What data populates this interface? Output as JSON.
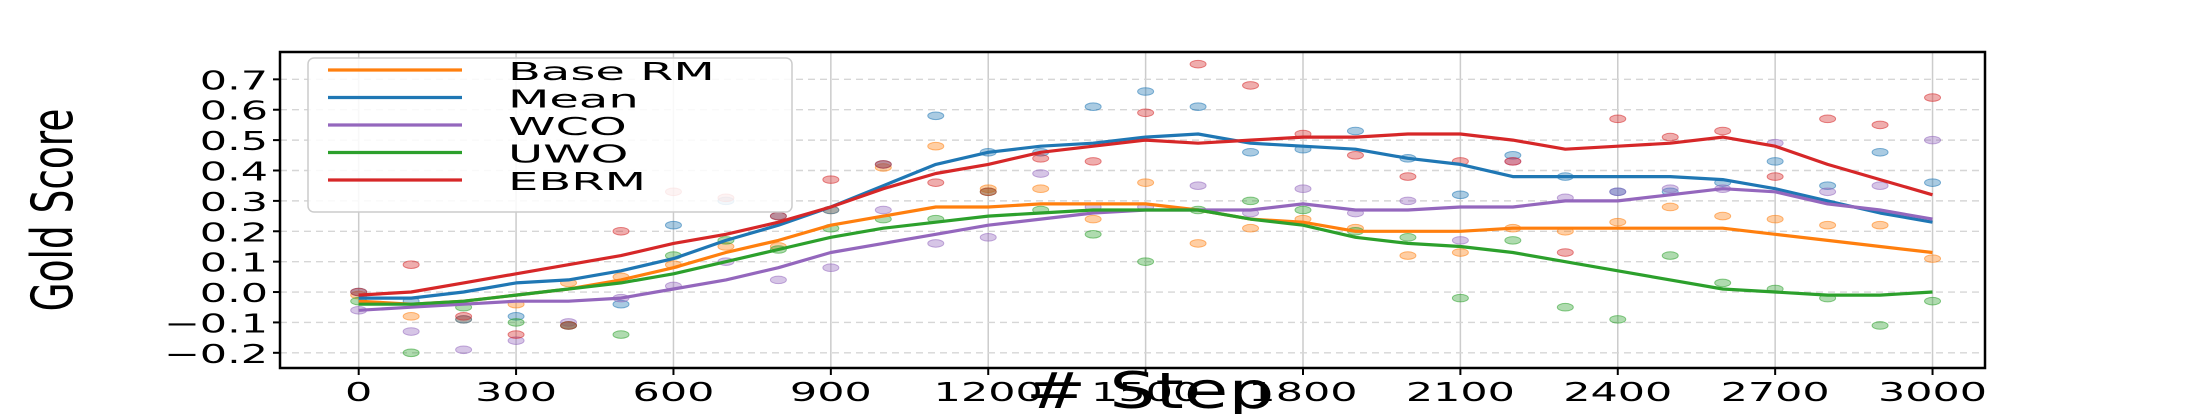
{
  "chart_data": {
    "type": "line",
    "xlabel": "# Step",
    "ylabel": "Gold Score",
    "xlim": [
      -150,
      3100
    ],
    "ylim": [
      -0.25,
      0.79
    ],
    "xticks": [
      0,
      300,
      600,
      900,
      1200,
      1500,
      1800,
      2100,
      2400,
      2700,
      3000
    ],
    "yticks": [
      -0.2,
      -0.1,
      0.0,
      0.1,
      0.2,
      0.3,
      0.4,
      0.5,
      0.6,
      0.7
    ],
    "ytick_labels": [
      "−0.2",
      "−0.1",
      "0.0",
      "0.1",
      "0.2",
      "0.3",
      "0.4",
      "0.5",
      "0.6",
      "0.7"
    ],
    "grid": true,
    "legend_position": "top-left",
    "series": [
      {
        "name": "Base RM",
        "color": "#ff7f0e",
        "x": [
          0,
          100,
          200,
          300,
          400,
          500,
          600,
          700,
          800,
          900,
          1000,
          1100,
          1200,
          1300,
          1400,
          1500,
          1600,
          1700,
          1800,
          1900,
          2000,
          2100,
          2200,
          2300,
          2400,
          2500,
          2600,
          2700,
          2800,
          2900,
          3000
        ],
        "y": [
          -0.03,
          -0.04,
          -0.03,
          -0.01,
          0.01,
          0.04,
          0.08,
          0.13,
          0.17,
          0.22,
          0.25,
          0.28,
          0.28,
          0.29,
          0.29,
          0.29,
          0.27,
          0.24,
          0.23,
          0.2,
          0.2,
          0.2,
          0.21,
          0.21,
          0.21,
          0.21,
          0.21,
          0.19,
          0.17,
          0.15,
          0.13
        ],
        "scatter_x": [
          0,
          100,
          200,
          300,
          400,
          500,
          600,
          700,
          800,
          900,
          1000,
          1100,
          1200,
          1300,
          1400,
          1500,
          1600,
          1700,
          1800,
          1900,
          2000,
          2100,
          2200,
          2300,
          2400,
          2500,
          2600,
          2700,
          2800,
          2900,
          3000
        ],
        "scatter_y": [
          -0.01,
          -0.08,
          -0.09,
          -0.04,
          0.03,
          0.05,
          0.09,
          0.15,
          0.15,
          0.27,
          0.41,
          0.48,
          0.34,
          0.34,
          0.24,
          0.36,
          0.16,
          0.21,
          0.24,
          0.21,
          0.12,
          0.13,
          0.21,
          0.2,
          0.23,
          0.28,
          0.25,
          0.24,
          0.22,
          0.22,
          0.11
        ]
      },
      {
        "name": "Mean",
        "color": "#1f77b4",
        "x": [
          0,
          100,
          200,
          300,
          400,
          500,
          600,
          700,
          800,
          900,
          1000,
          1100,
          1200,
          1300,
          1400,
          1500,
          1600,
          1700,
          1800,
          1900,
          2000,
          2100,
          2200,
          2300,
          2400,
          2500,
          2600,
          2700,
          2800,
          2900,
          3000
        ],
        "y": [
          -0.02,
          -0.02,
          0.0,
          0.03,
          0.04,
          0.07,
          0.11,
          0.17,
          0.22,
          0.28,
          0.35,
          0.42,
          0.46,
          0.48,
          0.49,
          0.51,
          0.52,
          0.49,
          0.48,
          0.47,
          0.44,
          0.42,
          0.38,
          0.38,
          0.38,
          0.38,
          0.37,
          0.34,
          0.3,
          0.26,
          0.23
        ],
        "scatter_x": [
          0,
          100,
          200,
          300,
          400,
          500,
          600,
          700,
          800,
          900,
          1000,
          1100,
          1200,
          1300,
          1400,
          1500,
          1600,
          1700,
          1800,
          1900,
          2000,
          2100,
          2200,
          2300,
          2400,
          2500,
          2600,
          2700,
          2800,
          2900,
          3000
        ],
        "scatter_y": [
          0.0,
          -0.03,
          -0.09,
          -0.08,
          -0.11,
          -0.04,
          0.22,
          0.3,
          0.25,
          0.27,
          0.42,
          0.58,
          0.46,
          0.46,
          0.61,
          0.66,
          0.61,
          0.46,
          0.47,
          0.53,
          0.44,
          0.32,
          0.45,
          0.38,
          0.33,
          0.33,
          0.36,
          0.43,
          0.35,
          0.46,
          0.36
        ]
      },
      {
        "name": "WCO",
        "color": "#9467bd",
        "x": [
          0,
          100,
          200,
          300,
          400,
          500,
          600,
          700,
          800,
          900,
          1000,
          1100,
          1200,
          1300,
          1400,
          1500,
          1600,
          1700,
          1800,
          1900,
          2000,
          2100,
          2200,
          2300,
          2400,
          2500,
          2600,
          2700,
          2800,
          2900,
          3000
        ],
        "y": [
          -0.06,
          -0.05,
          -0.04,
          -0.03,
          -0.03,
          -0.02,
          0.01,
          0.04,
          0.08,
          0.13,
          0.16,
          0.19,
          0.22,
          0.24,
          0.26,
          0.27,
          0.27,
          0.27,
          0.29,
          0.27,
          0.27,
          0.28,
          0.28,
          0.3,
          0.3,
          0.32,
          0.34,
          0.33,
          0.29,
          0.27,
          0.24
        ],
        "scatter_x": [
          0,
          100,
          200,
          300,
          400,
          500,
          600,
          700,
          800,
          900,
          1000,
          1100,
          1200,
          1300,
          1400,
          1500,
          1600,
          1700,
          1800,
          1900,
          2000,
          2100,
          2200,
          2300,
          2400,
          2500,
          2600,
          2700,
          2800,
          2900,
          3000
        ],
        "scatter_y": [
          -0.06,
          -0.13,
          -0.19,
          -0.16,
          -0.1,
          -0.02,
          0.02,
          0.1,
          0.04,
          0.08,
          0.27,
          0.16,
          0.18,
          0.39,
          0.28,
          0.28,
          0.35,
          0.26,
          0.34,
          0.26,
          0.3,
          0.17,
          0.43,
          0.31,
          0.33,
          0.34,
          0.34,
          0.49,
          0.33,
          0.35,
          0.5
        ]
      },
      {
        "name": "UWO",
        "color": "#2ca02c",
        "x": [
          0,
          100,
          200,
          300,
          400,
          500,
          600,
          700,
          800,
          900,
          1000,
          1100,
          1200,
          1300,
          1400,
          1500,
          1600,
          1700,
          1800,
          1900,
          2000,
          2100,
          2200,
          2300,
          2400,
          2500,
          2600,
          2700,
          2800,
          2900,
          3000
        ],
        "y": [
          -0.04,
          -0.04,
          -0.03,
          -0.01,
          0.01,
          0.03,
          0.06,
          0.1,
          0.14,
          0.18,
          0.21,
          0.23,
          0.25,
          0.26,
          0.27,
          0.27,
          0.27,
          0.24,
          0.22,
          0.18,
          0.16,
          0.15,
          0.13,
          0.1,
          0.07,
          0.04,
          0.01,
          0.0,
          -0.01,
          -0.01,
          0.0
        ],
        "scatter_x": [
          0,
          100,
          200,
          300,
          400,
          500,
          600,
          700,
          800,
          900,
          1000,
          1100,
          1200,
          1300,
          1400,
          1500,
          1600,
          1700,
          1800,
          1900,
          2000,
          2100,
          2200,
          2300,
          2400,
          2500,
          2600,
          2700,
          2800,
          2900,
          3000
        ],
        "scatter_y": [
          -0.03,
          -0.2,
          -0.05,
          -0.1,
          -0.11,
          -0.14,
          0.12,
          0.17,
          0.14,
          0.21,
          0.24,
          0.24,
          0.33,
          0.27,
          0.19,
          0.1,
          0.27,
          0.3,
          0.27,
          0.2,
          0.18,
          -0.02,
          0.17,
          -0.05,
          -0.09,
          0.12,
          0.03,
          0.01,
          -0.02,
          -0.11,
          -0.03
        ]
      },
      {
        "name": "EBRM",
        "color": "#d62728",
        "x": [
          0,
          100,
          200,
          300,
          400,
          500,
          600,
          700,
          800,
          900,
          1000,
          1100,
          1200,
          1300,
          1400,
          1500,
          1600,
          1700,
          1800,
          1900,
          2000,
          2100,
          2200,
          2300,
          2400,
          2500,
          2600,
          2700,
          2800,
          2900,
          3000
        ],
        "y": [
          -0.01,
          0.0,
          0.03,
          0.06,
          0.09,
          0.12,
          0.16,
          0.19,
          0.23,
          0.28,
          0.34,
          0.39,
          0.42,
          0.46,
          0.48,
          0.5,
          0.49,
          0.5,
          0.51,
          0.51,
          0.52,
          0.52,
          0.5,
          0.47,
          0.48,
          0.49,
          0.51,
          0.48,
          0.42,
          0.37,
          0.32
        ],
        "scatter_x": [
          0,
          100,
          200,
          300,
          400,
          500,
          600,
          700,
          800,
          900,
          1000,
          1100,
          1200,
          1300,
          1400,
          1500,
          1600,
          1700,
          1800,
          1900,
          2000,
          2100,
          2200,
          2300,
          2400,
          2500,
          2600,
          2700,
          2800,
          2900,
          3000
        ],
        "scatter_y": [
          0.0,
          0.09,
          -0.08,
          -0.14,
          -0.11,
          0.2,
          0.33,
          0.31,
          0.25,
          0.37,
          0.42,
          0.36,
          0.33,
          0.44,
          0.43,
          0.59,
          0.75,
          0.68,
          0.52,
          0.45,
          0.38,
          0.43,
          0.43,
          0.13,
          0.57,
          0.51,
          0.53,
          0.38,
          0.57,
          0.55,
          0.64
        ]
      }
    ]
  }
}
